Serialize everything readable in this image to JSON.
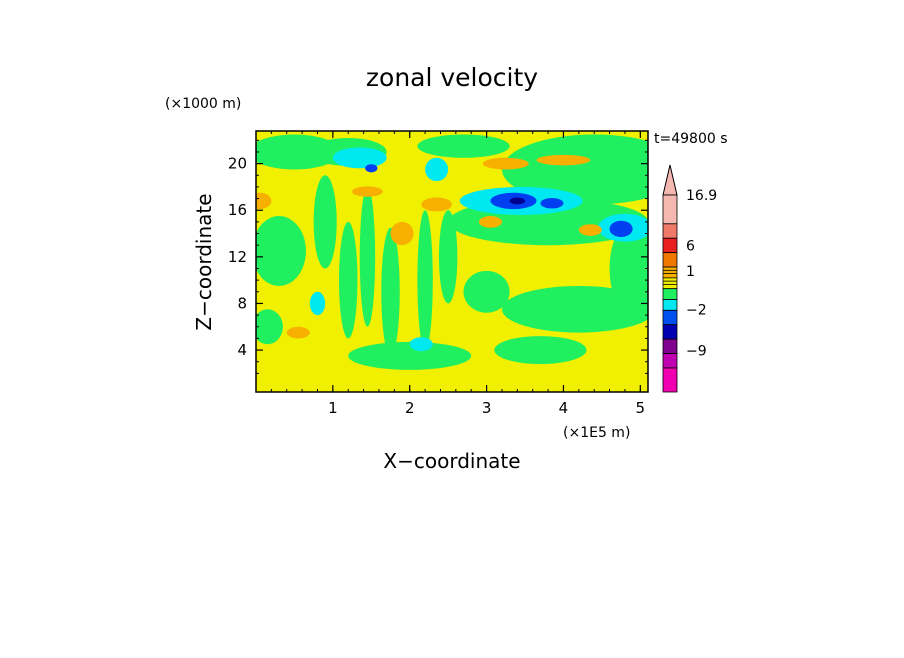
{
  "chart_data": {
    "type": "heatmap",
    "title": "zonal velocity",
    "xlabel": "X−coordinate",
    "ylabel": "Z−coordinate",
    "x_unit": "(×1E5 m)",
    "y_unit": "(×1000 m)",
    "time_label": "t=49800 s",
    "xlim": [
      0,
      5.1
    ],
    "ylim": [
      0.4,
      22.8
    ],
    "x_ticks": [
      1,
      2,
      3,
      4,
      5
    ],
    "y_ticks": [
      4,
      8,
      12,
      16,
      20
    ],
    "colorbar": {
      "max_label": "16.9",
      "tick_labels": [
        "16.9",
        "6",
        "1",
        "−2",
        "−9"
      ],
      "levels": [
        {
          "color": "#f5b8b0"
        },
        {
          "color": "#f07a6a"
        },
        {
          "color": "#e82020"
        },
        {
          "color": "#f07800"
        },
        {
          "color": "#f8b000"
        },
        {
          "color": "#f0f000"
        },
        {
          "color": "#20f060"
        },
        {
          "color": "#00e8f0"
        },
        {
          "color": "#0050f0"
        },
        {
          "color": "#0000b0"
        },
        {
          "color": "#800090"
        },
        {
          "color": "#c000b0"
        },
        {
          "color": "#f000b0"
        }
      ]
    },
    "field_colors": {
      "background": "#f0f000",
      "green": "#20f060",
      "cyan": "#00e8f0",
      "blue": "#0040f0",
      "darkblue": "#000090",
      "orange": "#f8b000"
    },
    "features": [
      {
        "kind": "green",
        "x": 4.4,
        "z": 19.5,
        "rx": 1.2,
        "rz": 3.0
      },
      {
        "kind": "green",
        "x": 3.8,
        "z": 15.0,
        "rx": 1.3,
        "rz": 2.0
      },
      {
        "kind": "green",
        "x": 4.2,
        "z": 7.5,
        "rx": 1.0,
        "rz": 2.0
      },
      {
        "kind": "green",
        "x": 4.9,
        "z": 11.0,
        "rx": 0.3,
        "rz": 4.0
      },
      {
        "kind": "green",
        "x": 3.7,
        "z": 4.0,
        "rx": 0.6,
        "rz": 1.2
      },
      {
        "kind": "green",
        "x": 0.5,
        "z": 21.0,
        "rx": 0.6,
        "rz": 1.5
      },
      {
        "kind": "green",
        "x": 0.3,
        "z": 12.5,
        "rx": 0.35,
        "rz": 3.0
      },
      {
        "kind": "green",
        "x": 0.15,
        "z": 6.0,
        "rx": 0.2,
        "rz": 1.5
      },
      {
        "kind": "green",
        "x": 0.9,
        "z": 15.0,
        "rx": 0.15,
        "rz": 4.0
      },
      {
        "kind": "green",
        "x": 1.2,
        "z": 10.0,
        "rx": 0.12,
        "rz": 5.0
      },
      {
        "kind": "green",
        "x": 1.45,
        "z": 12.0,
        "rx": 0.1,
        "rz": 6.0
      },
      {
        "kind": "green",
        "x": 1.75,
        "z": 9.0,
        "rx": 0.12,
        "rz": 5.5
      },
      {
        "kind": "green",
        "x": 2.2,
        "z": 10.0,
        "rx": 0.1,
        "rz": 6.0
      },
      {
        "kind": "green",
        "x": 2.5,
        "z": 12.0,
        "rx": 0.12,
        "rz": 4.0
      },
      {
        "kind": "green",
        "x": 2.0,
        "z": 3.5,
        "rx": 0.8,
        "rz": 1.2
      },
      {
        "kind": "green",
        "x": 1.2,
        "z": 21.0,
        "rx": 0.5,
        "rz": 1.2
      },
      {
        "kind": "green",
        "x": 2.7,
        "z": 21.5,
        "rx": 0.6,
        "rz": 1.0
      },
      {
        "kind": "green",
        "x": 3.0,
        "z": 9.0,
        "rx": 0.3,
        "rz": 1.8
      },
      {
        "kind": "cyan",
        "x": 3.45,
        "z": 16.8,
        "rx": 0.8,
        "rz": 1.2
      },
      {
        "kind": "cyan",
        "x": 4.8,
        "z": 14.5,
        "rx": 0.35,
        "rz": 1.2
      },
      {
        "kind": "cyan",
        "x": 1.35,
        "z": 20.5,
        "rx": 0.35,
        "rz": 0.9
      },
      {
        "kind": "cyan",
        "x": 2.35,
        "z": 19.5,
        "rx": 0.15,
        "rz": 1.0
      },
      {
        "kind": "cyan",
        "x": 0.8,
        "z": 8.0,
        "rx": 0.1,
        "rz": 1.0
      },
      {
        "kind": "cyan",
        "x": 2.15,
        "z": 4.5,
        "rx": 0.15,
        "rz": 0.6
      },
      {
        "kind": "blue",
        "x": 3.35,
        "z": 16.8,
        "rx": 0.3,
        "rz": 0.7
      },
      {
        "kind": "blue",
        "x": 3.85,
        "z": 16.6,
        "rx": 0.15,
        "rz": 0.45
      },
      {
        "kind": "blue",
        "x": 4.75,
        "z": 14.4,
        "rx": 0.15,
        "rz": 0.7
      },
      {
        "kind": "blue",
        "x": 1.5,
        "z": 19.6,
        "rx": 0.08,
        "rz": 0.35
      },
      {
        "kind": "darkblue",
        "x": 3.4,
        "z": 16.8,
        "rx": 0.1,
        "rz": 0.3
      },
      {
        "kind": "orange",
        "x": 3.25,
        "z": 20.0,
        "rx": 0.3,
        "rz": 0.5
      },
      {
        "kind": "orange",
        "x": 4.0,
        "z": 20.3,
        "rx": 0.35,
        "rz": 0.45
      },
      {
        "kind": "orange",
        "x": 1.45,
        "z": 17.6,
        "rx": 0.2,
        "rz": 0.45
      },
      {
        "kind": "orange",
        "x": 0.05,
        "z": 16.8,
        "rx": 0.15,
        "rz": 0.7
      },
      {
        "kind": "orange",
        "x": 0.55,
        "z": 5.5,
        "rx": 0.15,
        "rz": 0.5
      },
      {
        "kind": "orange",
        "x": 3.05,
        "z": 15.0,
        "rx": 0.15,
        "rz": 0.5
      },
      {
        "kind": "orange",
        "x": 4.35,
        "z": 14.3,
        "rx": 0.15,
        "rz": 0.5
      },
      {
        "kind": "orange",
        "x": 1.9,
        "z": 14.0,
        "rx": 0.15,
        "rz": 1.0
      },
      {
        "kind": "orange",
        "x": 2.35,
        "z": 16.5,
        "rx": 0.2,
        "rz": 0.6
      }
    ]
  }
}
